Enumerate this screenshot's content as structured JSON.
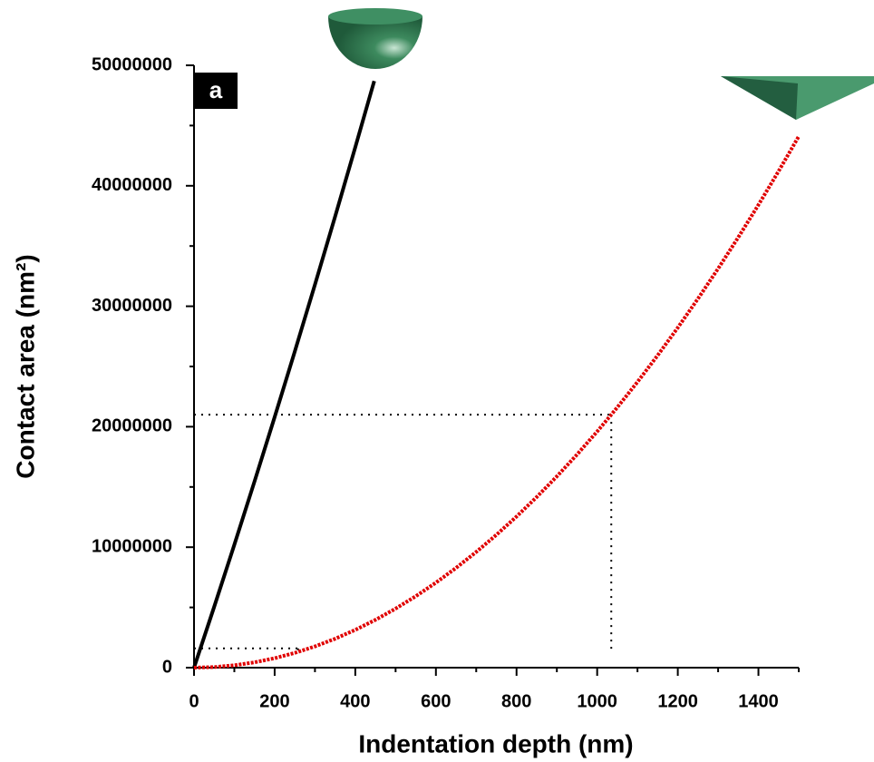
{
  "chart_data": {
    "type": "line",
    "panel_label": "a",
    "xlabel": "Indentation depth (nm)",
    "ylabel": "Contact area (nm²)",
    "xlim": [
      0,
      1500
    ],
    "ylim": [
      0,
      50000000
    ],
    "xticks": [
      0,
      200,
      400,
      600,
      800,
      1000,
      1200,
      1400
    ],
    "yticks": [
      0,
      10000000,
      20000000,
      30000000,
      40000000,
      50000000
    ],
    "series": [
      {
        "color": "#000000",
        "x": [
          0,
          50,
          100,
          150,
          200,
          250,
          300,
          350,
          400,
          447
        ],
        "values": [
          0,
          5050000,
          10200000,
          15450000,
          20800000,
          26250000,
          31800000,
          37450000,
          43200000,
          48700000
        ]
      },
      {
        "color": "#e00000",
        "x": [
          0,
          50,
          100,
          150,
          200,
          250,
          300,
          350,
          400,
          450,
          500,
          550,
          600,
          650,
          700,
          750,
          800,
          850,
          900,
          950,
          1000,
          1050,
          1100,
          1150,
          1200,
          1250,
          1300,
          1350,
          1400,
          1450,
          1500
        ],
        "values": [
          0,
          49000,
          196000,
          441000,
          784000,
          1225000,
          1764000,
          2401000,
          3136000,
          3969000,
          4900000,
          5929000,
          7056000,
          8281000,
          9604000,
          11025000,
          12544000,
          14161000,
          15876000,
          17689000,
          19600000,
          21609000,
          23716000,
          25921000,
          28224000,
          30625000,
          33124000,
          35721000,
          38416000,
          41209000,
          44100000
        ]
      }
    ],
    "guides": [
      {
        "x": 1035,
        "y": 21000000
      },
      {
        "x": 258,
        "y": 1600000
      }
    ]
  }
}
